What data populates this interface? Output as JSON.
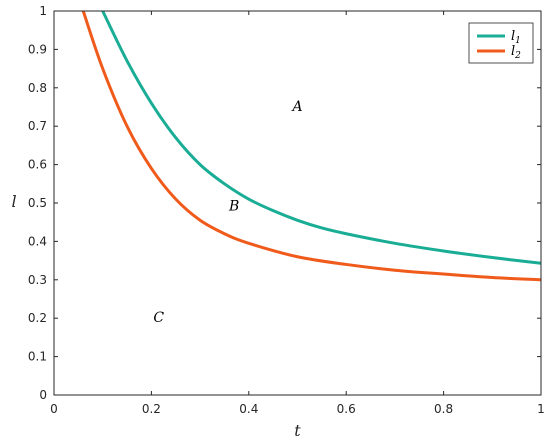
{
  "chart_data": {
    "type": "line",
    "xlabel": "t",
    "ylabel": "l",
    "xlim": [
      0,
      1
    ],
    "ylim": [
      0,
      1
    ],
    "x_ticks": [
      "0",
      "0.2",
      "0.4",
      "0.6",
      "0.8",
      "1"
    ],
    "y_ticks": [
      "0",
      "0.1",
      "0.2",
      "0.3",
      "0.4",
      "0.5",
      "0.6",
      "0.7",
      "0.8",
      "0.9",
      "1"
    ],
    "grid": false,
    "legend_position": "top-right",
    "series": [
      {
        "name": "l1",
        "name_base": "l",
        "name_sub": "1",
        "color": "#1aad95",
        "points": [
          [
            0.1,
            1.0
          ],
          [
            0.15,
            0.87
          ],
          [
            0.2,
            0.76
          ],
          [
            0.25,
            0.67
          ],
          [
            0.3,
            0.6
          ],
          [
            0.35,
            0.55
          ],
          [
            0.4,
            0.51
          ],
          [
            0.45,
            0.48
          ],
          [
            0.5,
            0.455
          ],
          [
            0.55,
            0.435
          ],
          [
            0.6,
            0.42
          ],
          [
            0.7,
            0.395
          ],
          [
            0.8,
            0.375
          ],
          [
            0.9,
            0.358
          ],
          [
            1.0,
            0.343
          ]
        ]
      },
      {
        "name": "l2",
        "name_base": "l",
        "name_sub": "2",
        "color": "#f05a1a",
        "points": [
          [
            0.06,
            1.0
          ],
          [
            0.1,
            0.85
          ],
          [
            0.15,
            0.7
          ],
          [
            0.2,
            0.59
          ],
          [
            0.25,
            0.51
          ],
          [
            0.3,
            0.455
          ],
          [
            0.35,
            0.42
          ],
          [
            0.4,
            0.395
          ],
          [
            0.5,
            0.36
          ],
          [
            0.6,
            0.34
          ],
          [
            0.7,
            0.325
          ],
          [
            0.8,
            0.315
          ],
          [
            0.9,
            0.306
          ],
          [
            1.0,
            0.3
          ]
        ]
      }
    ],
    "annotations": [
      {
        "text": "A",
        "x": 0.5,
        "y": 0.74
      },
      {
        "text": "B",
        "x": 0.37,
        "y": 0.48
      },
      {
        "text": "C",
        "x": 0.215,
        "y": 0.19
      }
    ]
  }
}
